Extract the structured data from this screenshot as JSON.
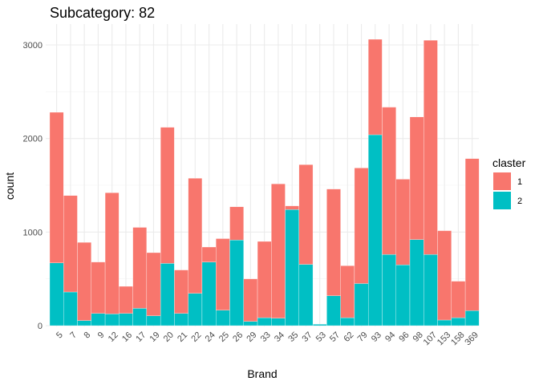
{
  "chart_data": {
    "type": "bar",
    "stacked": true,
    "title": "Subcategory: 82",
    "xlabel": "Brand",
    "ylabel": "count",
    "ylim": [
      0,
      3200
    ],
    "yticks": [
      0,
      1000,
      2000,
      3000
    ],
    "categories": [
      "5",
      "7",
      "8",
      "9",
      "12",
      "16",
      "17",
      "19",
      "20",
      "21",
      "22",
      "24",
      "25",
      "26",
      "29",
      "33",
      "34",
      "35",
      "37",
      "53",
      "57",
      "62",
      "79",
      "93",
      "94",
      "96",
      "98",
      "107",
      "153",
      "158",
      "369"
    ],
    "legend": {
      "title": "claster",
      "position": "right"
    },
    "series": [
      {
        "name": "2",
        "color": "#00BFC4",
        "values": [
          670,
          360,
          55,
          130,
          125,
          130,
          185,
          105,
          665,
          130,
          345,
          680,
          165,
          915,
          45,
          85,
          80,
          1240,
          655,
          15,
          320,
          85,
          450,
          2040,
          760,
          650,
          920,
          760,
          60,
          85,
          160
        ]
      },
      {
        "name": "1",
        "color": "#F8766D",
        "values": [
          1610,
          1030,
          835,
          550,
          1295,
          290,
          865,
          675,
          1455,
          465,
          1230,
          160,
          765,
          355,
          455,
          815,
          1435,
          40,
          1065,
          0,
          1140,
          555,
          1235,
          1020,
          1575,
          915,
          1310,
          2290,
          955,
          390,
          1625
        ]
      }
    ]
  }
}
